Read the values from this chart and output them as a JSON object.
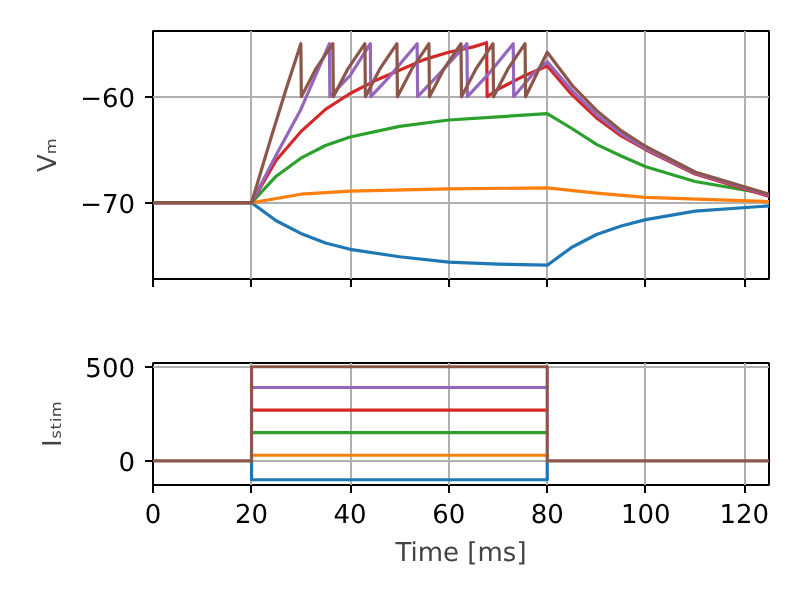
{
  "chart_data": [
    {
      "type": "line",
      "ylabel": "Vₘ",
      "xlim": [
        0,
        125
      ],
      "xticks": [
        0,
        20,
        40,
        60,
        80,
        100,
        120
      ],
      "ylim": [
        -77.2,
        -53.8
      ],
      "yticks": [
        {
          "value": -70,
          "label": "−70"
        },
        {
          "value": -60,
          "label": "−60"
        }
      ],
      "grid": true,
      "tick_labels": "y",
      "series": [
        {
          "color": "#1f77b4",
          "x": [
            0,
            20,
            25,
            30,
            35,
            40,
            50,
            60,
            70,
            80,
            85,
            90,
            95,
            100,
            110,
            125
          ],
          "values": [
            -70,
            -70,
            -71.7,
            -72.9,
            -73.8,
            -74.4,
            -75.1,
            -75.6,
            -75.8,
            -75.9,
            -74.2,
            -73.0,
            -72.2,
            -71.6,
            -70.8,
            -70.3
          ]
        },
        {
          "color": "#ff7f0e",
          "x": [
            0,
            20,
            30,
            40,
            60,
            80,
            90,
            100,
            125
          ],
          "values": [
            -70,
            -70,
            -69.2,
            -68.9,
            -68.7,
            -68.6,
            -69.1,
            -69.5,
            -69.9
          ]
        },
        {
          "color": "#2ca02c",
          "x": [
            0,
            20,
            25,
            30,
            35,
            40,
            50,
            60,
            70,
            80,
            85,
            90,
            95,
            100,
            110,
            125
          ],
          "values": [
            -70,
            -70,
            -67.5,
            -65.8,
            -64.6,
            -63.8,
            -62.8,
            -62.2,
            -61.9,
            -61.6,
            -63.0,
            -64.5,
            -65.6,
            -66.6,
            -68.0,
            -69.2
          ]
        },
        {
          "color": "#d62728",
          "x": [
            0,
            20,
            25,
            30,
            35,
            40,
            45,
            50,
            55,
            60,
            65,
            67.7,
            67.8,
            70,
            75,
            80,
            85,
            90,
            95,
            100,
            110,
            125
          ],
          "values": [
            -70,
            -70,
            -66.0,
            -63.3,
            -61.2,
            -59.7,
            -58.5,
            -57.5,
            -56.5,
            -55.8,
            -55.3,
            -54.9,
            -60,
            -59.3,
            -58.1,
            -57.1,
            -59.8,
            -62.0,
            -63.7,
            -65.0,
            -67.3,
            -69.4
          ]
        },
        {
          "color": "#9467bd",
          "x": [
            0,
            20,
            25,
            30,
            35.8,
            35.9,
            40,
            44.1,
            44.2,
            48,
            53.6,
            53.7,
            58,
            63.7,
            63.8,
            68,
            73.1,
            73.2,
            77,
            80,
            85,
            90,
            95,
            100,
            110,
            125
          ],
          "values": [
            -70,
            -70,
            -65.5,
            -61.2,
            -55,
            -60,
            -58,
            -55,
            -60,
            -58.1,
            -55,
            -60,
            -57.9,
            -55,
            -60,
            -57.9,
            -55,
            -60,
            -57.9,
            -56.7,
            -59.4,
            -61.7,
            -63.5,
            -64.9,
            -67.2,
            -69.3
          ]
        },
        {
          "color": "#8c564b",
          "x": [
            0,
            20,
            24,
            27,
            30,
            30.1,
            33,
            36.5,
            36.6,
            39.5,
            43,
            43.1,
            46,
            49.5,
            49.6,
            52.5,
            56,
            56.1,
            59,
            62.5,
            62.6,
            65.5,
            69,
            69.1,
            72,
            75.5,
            75.6,
            80,
            85,
            90,
            95,
            100,
            110,
            125
          ],
          "values": [
            -70,
            -70,
            -63.8,
            -59.3,
            -55,
            -60,
            -57.4,
            -55,
            -60,
            -57.4,
            -55,
            -60,
            -57.4,
            -55,
            -60,
            -57.4,
            -55,
            -60,
            -57.4,
            -55,
            -60,
            -57.4,
            -55,
            -60,
            -57.4,
            -55,
            -60,
            -55.8,
            -58.9,
            -61.3,
            -63.2,
            -64.7,
            -67.1,
            -69.2
          ]
        }
      ]
    },
    {
      "type": "line",
      "ylabel": "Iₛₜᵢₘ",
      "xlabel": "Time [ms]",
      "xlim": [
        0,
        125
      ],
      "xticks": [
        0,
        20,
        40,
        60,
        80,
        100,
        120
      ],
      "ylim": [
        -128,
        520
      ],
      "yticks": [
        0,
        500
      ],
      "grid": true,
      "series": [
        {
          "color": "#1f77b4",
          "x": [
            20,
            20,
            80,
            80
          ],
          "values": [
            0,
            -100,
            -100,
            0
          ]
        },
        {
          "color": "#ff7f0e",
          "x": [
            20,
            80
          ],
          "values": [
            30,
            30
          ]
        },
        {
          "color": "#2ca02c",
          "x": [
            20,
            80
          ],
          "values": [
            150,
            150
          ]
        },
        {
          "color": "#d62728",
          "x": [
            20,
            80
          ],
          "values": [
            270,
            270
          ]
        },
        {
          "color": "#9467bd",
          "x": [
            20,
            80
          ],
          "values": [
            390,
            390
          ]
        },
        {
          "color": "#8c564b",
          "x": [
            0,
            20,
            20,
            80,
            80,
            125
          ],
          "values": [
            0,
            0,
            500,
            500,
            0,
            0
          ]
        }
      ]
    }
  ]
}
